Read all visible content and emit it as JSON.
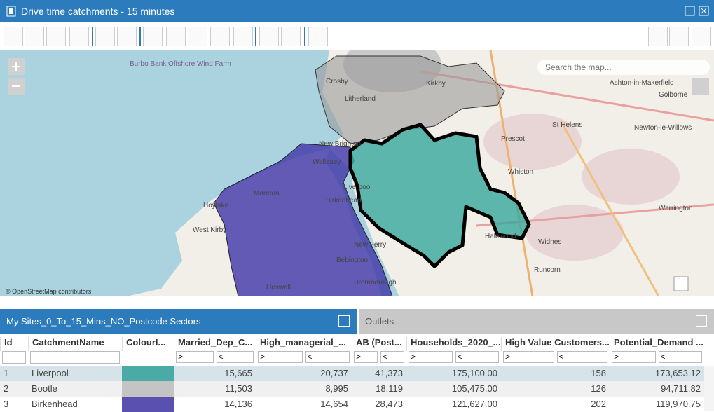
{
  "window": {
    "title": "Drive time catchments - 15 minutes"
  },
  "map": {
    "search_placeholder": "Search the map...",
    "attribution": "© OpenStreetMap contributors",
    "places": [
      "Liverpool",
      "Wallasey",
      "Birkenhead",
      "Moreton",
      "Hoylake",
      "West Kirby",
      "Bebington",
      "Heswall",
      "New Brighton",
      "New Ferry",
      "Bromborough",
      "Litherland",
      "Crosby",
      "Kirkby",
      "Prescot",
      "Whiston",
      "Halewood",
      "Widnes",
      "Runcorn",
      "St Helens",
      "Warrington",
      "Newton-le-Willows",
      "Ashton-in-Makerfield",
      "Golborne",
      "Burbo Bank Offshore Wind Farm"
    ]
  },
  "tabs": [
    "My Sites_0_To_15_Mins_NO_Postcode Sectors",
    "Outlets"
  ],
  "table": {
    "columns": [
      "Id",
      "CatchmentName",
      "ColourI...",
      "Married_Dep_C...",
      "High_managerial_...",
      "AB (Post...",
      "Households_2020_...",
      "High Value Customers...",
      "Potential_Demand ..."
    ],
    "filter_operators": [
      ">",
      "<"
    ],
    "rows": [
      {
        "cells": [
          "1",
          "Liverpool",
          "",
          "15,665",
          "20,737",
          "41,373",
          "175,100.00",
          "158",
          "173,653.12"
        ],
        "color": "#4aaba6"
      },
      {
        "cells": [
          "2",
          "Bootle",
          "",
          "11,503",
          "8,995",
          "18,119",
          "105,475.00",
          "126",
          "94,711.82"
        ],
        "color": "#c4c4c4"
      },
      {
        "cells": [
          "3",
          "Birkenhead",
          "",
          "14,136",
          "14,654",
          "28,473",
          "121,627.00",
          "202",
          "119,970.75"
        ],
        "color": "#5a50b0"
      }
    ]
  }
}
